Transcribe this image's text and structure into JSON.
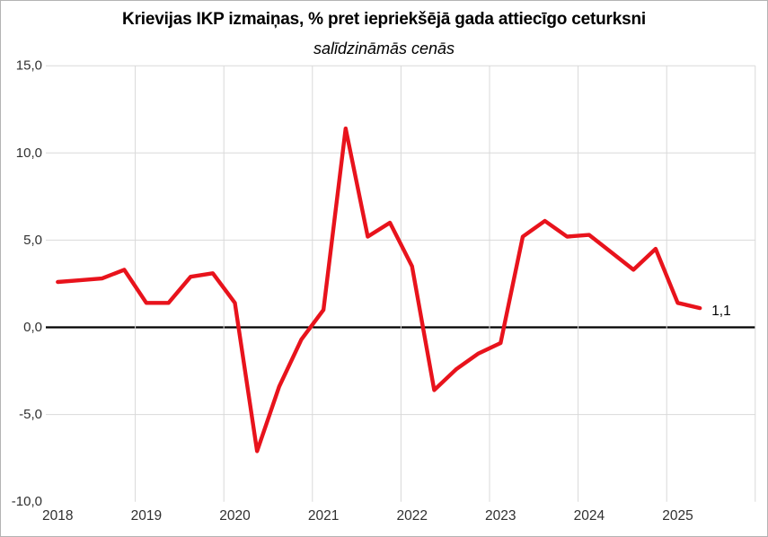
{
  "chart_data": {
    "type": "line",
    "title": "Krievijas IKP izmaiņas, % pret iepriekšējā gada attiecīgo ceturksni",
    "subtitle": "salīdzināmās cenās",
    "x_quarters": [
      "2018 Q1",
      "2018 Q2",
      "2018 Q3",
      "2018 Q4",
      "2019 Q1",
      "2019 Q2",
      "2019 Q3",
      "2019 Q4",
      "2020 Q1",
      "2020 Q2",
      "2020 Q3",
      "2020 Q4",
      "2021 Q1",
      "2021 Q2",
      "2021 Q3",
      "2021 Q4",
      "2022 Q1",
      "2022 Q2",
      "2022 Q3",
      "2022 Q4",
      "2023 Q1",
      "2023 Q2",
      "2023 Q3",
      "2023 Q4",
      "2024 Q1",
      "2024 Q2",
      "2024 Q3",
      "2024 Q4",
      "2025 Q1",
      "2025 Q2"
    ],
    "series": [
      {
        "name": "IKP izmaiņas, %",
        "color": "#e8131c",
        "values": [
          2.6,
          2.7,
          2.8,
          3.3,
          1.4,
          1.4,
          2.9,
          3.1,
          1.4,
          -7.1,
          -3.4,
          -0.7,
          1.0,
          11.4,
          5.2,
          6.0,
          3.5,
          -3.6,
          -2.4,
          -1.5,
          -0.9,
          5.2,
          6.1,
          5.2,
          5.3,
          4.3,
          3.3,
          4.5,
          1.4,
          1.1
        ]
      }
    ],
    "x_tick_labels": [
      "2018",
      "2019",
      "2020",
      "2021",
      "2022",
      "2023",
      "2024",
      "2025"
    ],
    "y_ticks": [
      15,
      10,
      5,
      0,
      -5,
      -10
    ],
    "y_tick_labels": [
      "15,0",
      "10,0",
      "5,0",
      "0,0",
      "-5,0",
      "-10,0"
    ],
    "ylim": [
      -10,
      15
    ],
    "grid": "major",
    "legend": false,
    "annotation": {
      "text": "1,1",
      "at": "2025 Q2"
    }
  },
  "colors": {
    "line": "#e8131c",
    "grid": "#d9d9d9",
    "zero_line": "#000000",
    "axis_text": "#303030",
    "annotation_text": "#000000"
  }
}
